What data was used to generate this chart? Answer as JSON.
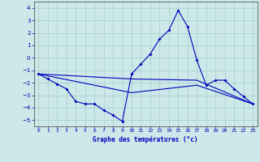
{
  "xlabel": "Graphe des températures (°c)",
  "bg_color": "#cce8e8",
  "grid_color": "#aacccc",
  "line_color": "#0000bb",
  "ylim": [
    -5.5,
    4.5
  ],
  "xlim": [
    -0.5,
    23.5
  ],
  "yticks": [
    -5,
    -4,
    -3,
    -2,
    -1,
    0,
    1,
    2,
    3,
    4
  ],
  "xticks": [
    0,
    1,
    2,
    3,
    4,
    5,
    6,
    7,
    8,
    9,
    10,
    11,
    12,
    13,
    14,
    15,
    16,
    17,
    18,
    19,
    20,
    21,
    22,
    23
  ],
  "series1_x": [
    0,
    1,
    2,
    3,
    4,
    5,
    6,
    7,
    8,
    9,
    10,
    11,
    12,
    13,
    14,
    15,
    16,
    17,
    18,
    19,
    20,
    21,
    22,
    23
  ],
  "series1_y": [
    -1.3,
    -1.7,
    -2.1,
    -2.5,
    -3.5,
    -3.7,
    -3.7,
    -4.2,
    -4.6,
    -5.1,
    -1.3,
    -0.5,
    0.3,
    1.5,
    2.2,
    3.8,
    2.5,
    -0.2,
    -2.2,
    -1.8,
    -1.8,
    -2.5,
    -3.1,
    -3.7
  ],
  "series2_x": [
    0,
    10,
    17,
    23
  ],
  "series2_y": [
    -1.3,
    -1.7,
    -1.8,
    -3.7
  ],
  "series3_x": [
    0,
    10,
    17,
    23
  ],
  "series3_y": [
    -1.3,
    -2.8,
    -2.2,
    -3.7
  ]
}
